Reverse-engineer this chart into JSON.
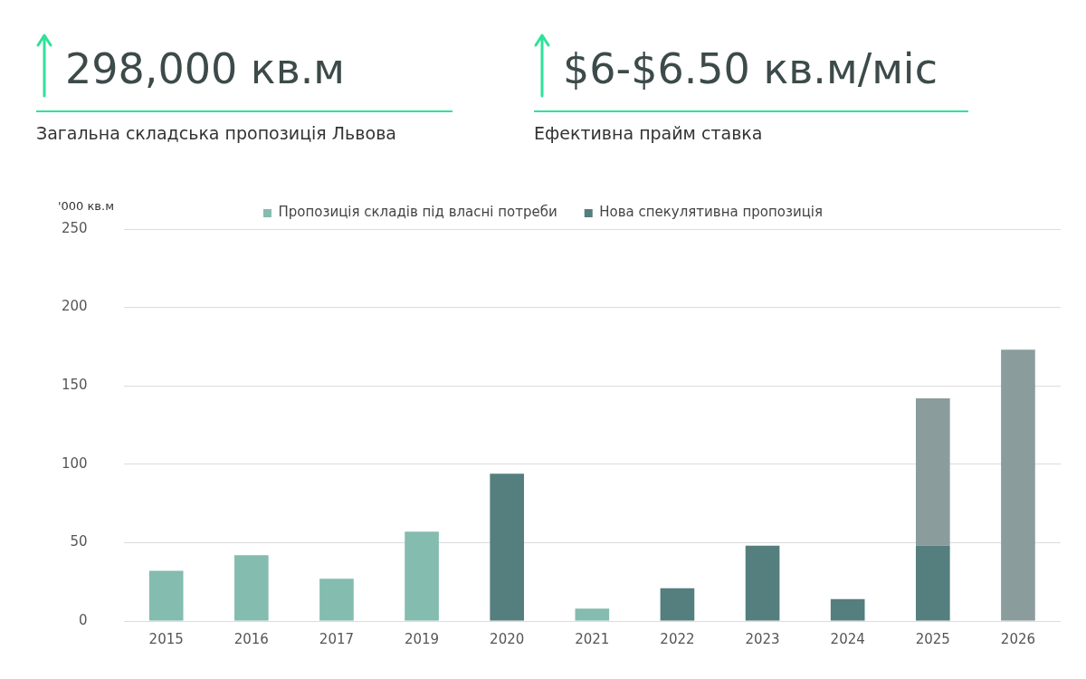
{
  "chart_data": {
    "type": "bar",
    "stacked": true,
    "annotations": [
      "298,000 кв.м",
      "Загальна складська пропозиція Львова",
      "$6-$6.50 кв.м/міс",
      "Ефективна прайм ставка"
    ],
    "ylabel": "'000 кв.м",
    "categories": [
      "2015",
      "2016",
      "2017",
      "2019",
      "2020",
      "2021",
      "2022",
      "2023",
      "2024",
      "2025",
      "2026"
    ],
    "series": [
      {
        "name": "Пропозиція складів під власні потреби",
        "color": "#84bcaf",
        "values": [
          32,
          42,
          27,
          57,
          null,
          8,
          null,
          null,
          null,
          null,
          null
        ]
      },
      {
        "name": "Нова спекулятивна пропозиція",
        "color": "#557e7e",
        "values": [
          null,
          null,
          null,
          null,
          94,
          null,
          21,
          48,
          14,
          48,
          null
        ]
      },
      {
        "color": "#8a9c9c",
        "values": [
          null,
          null,
          null,
          null,
          null,
          null,
          null,
          null,
          null,
          94,
          173
        ]
      }
    ],
    "ylim": [
      0,
      250
    ],
    "yticks": [
      0,
      50,
      100,
      150,
      200,
      250
    ],
    "grid": "y",
    "legend": "top"
  }
}
